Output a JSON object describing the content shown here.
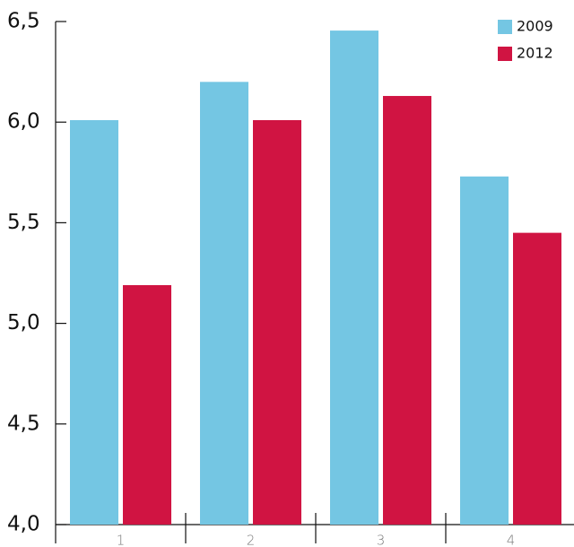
{
  "chart_data": {
    "type": "bar",
    "categories": [
      "1",
      "2",
      "3",
      "4"
    ],
    "series": [
      {
        "name": "2009",
        "color": "#74c6e3",
        "values": [
          6.01,
          6.2,
          6.455,
          5.73
        ]
      },
      {
        "name": "2012",
        "color": "#d01442",
        "values": [
          5.19,
          6.01,
          6.13,
          5.45
        ]
      }
    ],
    "ylim": [
      4.0,
      6.5
    ],
    "yticks": [
      {
        "value": 4.0,
        "label": "4,0"
      },
      {
        "value": 4.5,
        "label": "4,5"
      },
      {
        "value": 5.0,
        "label": "5,0"
      },
      {
        "value": 5.5,
        "label": "5,5"
      },
      {
        "value": 6.0,
        "label": "6,0"
      },
      {
        "value": 6.5,
        "label": "6,5"
      }
    ],
    "legend": "top-right"
  }
}
